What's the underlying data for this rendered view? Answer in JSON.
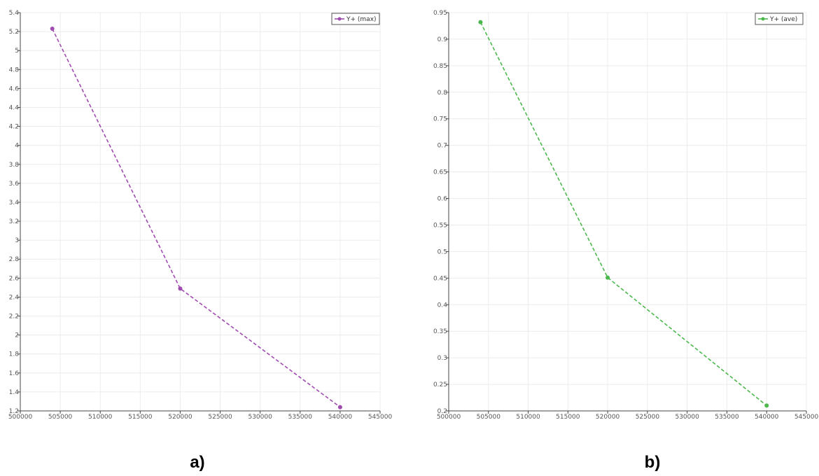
{
  "chart_data": [
    {
      "type": "line",
      "panel_label": "a)",
      "x": [
        504000,
        520000,
        540000
      ],
      "series": [
        {
          "name": "Y+ (max)",
          "values": [
            5.23,
            2.49,
            1.24
          ],
          "color": "#a04bb0"
        }
      ],
      "xlim": [
        500000,
        545000
      ],
      "ylim": [
        1.2,
        5.4
      ],
      "x_ticks": [
        500000,
        505000,
        510000,
        515000,
        520000,
        525000,
        530000,
        535000,
        540000,
        545000
      ],
      "y_ticks": [
        1.2,
        1.4,
        1.6,
        1.8,
        2,
        2.2,
        2.4,
        2.6,
        2.8,
        3,
        3.2,
        3.4,
        3.6,
        3.8,
        4,
        4.2,
        4.4,
        4.6,
        4.8,
        5,
        5.2,
        5.4
      ],
      "grid": true,
      "line_style": "dashed",
      "legend_position": "top-right"
    },
    {
      "type": "line",
      "panel_label": "b)",
      "x": [
        504000,
        520000,
        540000
      ],
      "series": [
        {
          "name": "Y+ (ave)",
          "values": [
            0.932,
            0.451,
            0.21
          ],
          "color": "#4cb84c"
        }
      ],
      "xlim": [
        500000,
        545000
      ],
      "ylim": [
        0.2,
        0.95
      ],
      "x_ticks": [
        500000,
        505000,
        510000,
        515000,
        520000,
        525000,
        530000,
        535000,
        540000,
        545000
      ],
      "y_ticks": [
        0.2,
        0.25,
        0.3,
        0.35,
        0.4,
        0.45,
        0.5,
        0.55,
        0.6,
        0.65,
        0.7,
        0.75,
        0.8,
        0.85,
        0.9,
        0.95
      ],
      "grid": true,
      "line_style": "dashed",
      "legend_position": "top-right"
    }
  ]
}
